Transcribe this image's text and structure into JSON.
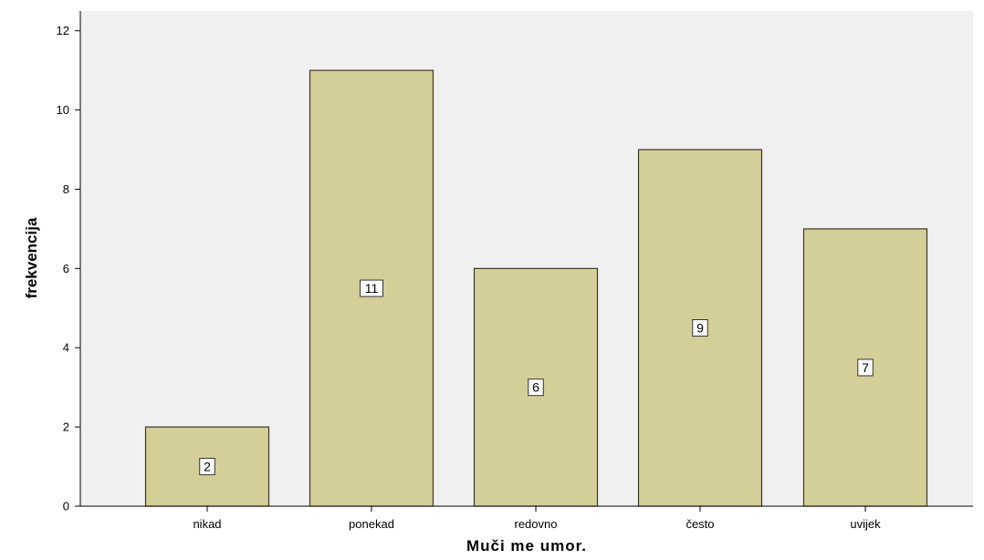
{
  "chart_data": {
    "type": "bar",
    "categories": [
      "nikad",
      "ponekad",
      "redovno",
      "često",
      "uvijek"
    ],
    "values": [
      2,
      11,
      6,
      9,
      7
    ],
    "data_labels": [
      "2",
      "11",
      "6",
      "9",
      "7"
    ],
    "xlabel": "Muči me umor.",
    "ylabel": "frekvencija",
    "ylim": [
      0,
      12.5
    ],
    "yticks": [
      0,
      2,
      4,
      6,
      8,
      10,
      12
    ],
    "grid": false,
    "colors": {
      "bar_fill": "#d4ce98",
      "bar_stroke": "#3a3a2a",
      "plot_background": "#f0f0f0"
    }
  }
}
